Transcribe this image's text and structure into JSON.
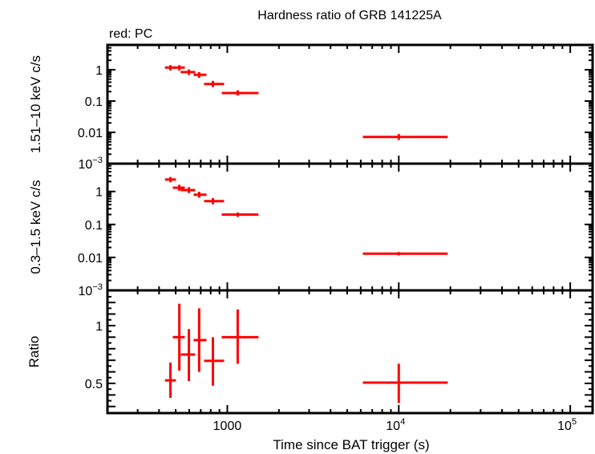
{
  "chart_data": {
    "type": "scatter",
    "title": "Hardness ratio of GRB 141225A",
    "legend_note": "red: PC",
    "xlabel": "Time since BAT trigger (s)",
    "xscale": "log",
    "xlim": [
      200,
      135000
    ],
    "xticks": [
      {
        "v": 1000,
        "label": "1000"
      },
      {
        "v": 10000,
        "label": "10",
        "sup": "4"
      },
      {
        "v": 100000,
        "label": "10",
        "sup": "5"
      }
    ],
    "series_color": "#ff0000",
    "x": [
      466,
      525,
      597,
      685,
      824,
      1150,
      10000
    ],
    "x_err_low": [
      433,
      481,
      535,
      636,
      732,
      928,
      6170
    ],
    "x_err_high": [
      502,
      565,
      650,
      756,
      958,
      1520,
      19300
    ],
    "panels": [
      {
        "ylabel": "1.51–10 keV c/s",
        "yscale": "log",
        "ylim": [
          0.001,
          6.2
        ],
        "yticks": [
          {
            "v": 1,
            "label": "1"
          },
          {
            "v": 0.1,
            "label": "0.1"
          },
          {
            "v": 0.01,
            "label": "0.01"
          },
          {
            "v": 0.001,
            "label": "10",
            "sup": "−3"
          }
        ],
        "y": [
          1.17,
          1.17,
          0.84,
          0.69,
          0.35,
          0.18,
          0.0071
        ],
        "y_err_low": [
          0.95,
          0.95,
          0.68,
          0.55,
          0.28,
          0.15,
          0.0057
        ],
        "y_err_high": [
          1.4,
          1.4,
          1.02,
          0.84,
          0.44,
          0.22,
          0.0088
        ]
      },
      {
        "ylabel": "0.3–1.5 keV c/s",
        "yscale": "log",
        "ylim": [
          0.001,
          7
        ],
        "yticks": [
          {
            "v": 1,
            "label": "1"
          },
          {
            "v": 0.1,
            "label": "0.1"
          },
          {
            "v": 0.01,
            "label": "0.01"
          },
          {
            "v": 0.001,
            "label": "10",
            "sup": "−3"
          }
        ],
        "y": [
          2.3,
          1.3,
          1.1,
          0.8,
          0.51,
          0.2,
          0.013
        ],
        "y_err_low": [
          1.9,
          1.05,
          0.9,
          0.65,
          0.41,
          0.17,
          0.0115
        ],
        "y_err_high": [
          2.75,
          1.6,
          1.35,
          0.98,
          0.63,
          0.23,
          0.0145
        ]
      },
      {
        "ylabel": "Ratio",
        "yscale": "linear",
        "ylim": [
          0.243,
          1.305
        ],
        "yticks": [
          {
            "v": 1,
            "label": "1"
          },
          {
            "v": 0.5,
            "label": "0.5"
          }
        ],
        "y": [
          0.526,
          0.9,
          0.75,
          0.875,
          0.695,
          0.9,
          0.507
        ],
        "y_err_low": [
          0.375,
          0.61,
          0.52,
          0.6,
          0.48,
          0.67,
          0.33
        ],
        "y_err_high": [
          0.68,
          1.19,
          0.97,
          1.15,
          0.9,
          1.14,
          0.67
        ]
      }
    ]
  }
}
